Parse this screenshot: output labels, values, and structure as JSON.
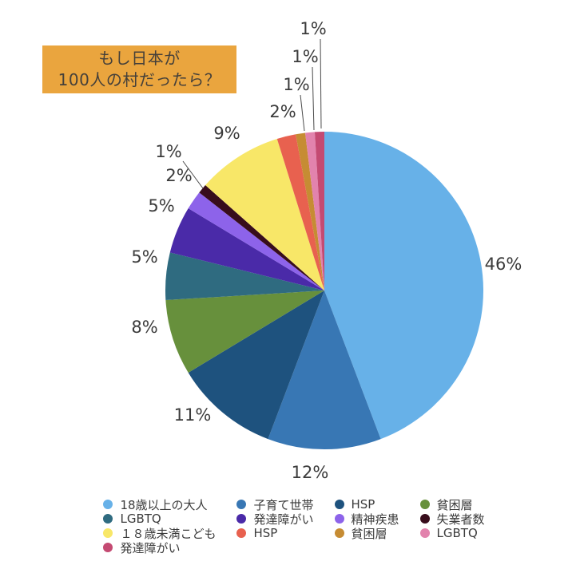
{
  "title": {
    "line1": "もし日本が",
    "line2": "100人の村だったら？"
  },
  "colors": {
    "title_bg": "#eaa53e",
    "title_text": "#45403a",
    "label_text": "#3b3b3b",
    "page_bg": "#ffffff"
  },
  "chart_data": {
    "type": "pie",
    "title": "もし日本が100人の村だったら？",
    "value_unit": "percent",
    "start_angle_deg": 0,
    "direction": "clockwise",
    "grid": false,
    "legend_position": "bottom",
    "legend_columns": 4,
    "slices": [
      {
        "label": "18歳以上の大人",
        "value": 46,
        "display": "46%",
        "color": "#67b1e8"
      },
      {
        "label": "子育て世帯",
        "value": 12,
        "display": "12%",
        "color": "#3877b4"
      },
      {
        "label": "HSP",
        "value": 11,
        "display": "11%",
        "color": "#1e527e"
      },
      {
        "label": "貧困層",
        "value": 8,
        "display": "8%",
        "color": "#67903c"
      },
      {
        "label": "LGBTQ",
        "value": 5,
        "display": "5%",
        "color": "#2f6b80"
      },
      {
        "label": "発達障がい",
        "value": 5,
        "display": "5%",
        "color": "#4a2aa8"
      },
      {
        "label": "精神疾患",
        "value": 2,
        "display": "2%",
        "color": "#8d63ea"
      },
      {
        "label": "失業者数",
        "value": 1,
        "display": "1%",
        "color": "#380d1c"
      },
      {
        "label": "１８歳未満こども",
        "value": 9,
        "display": "9%",
        "color": "#f8e768"
      },
      {
        "label": "HSP",
        "value": 2,
        "display": "2%",
        "color": "#e8614f"
      },
      {
        "label": "貧困層",
        "value": 1,
        "display": "1%",
        "color": "#c68c33"
      },
      {
        "label": "LGBTQ",
        "value": 1,
        "display": "1%",
        "color": "#e283ad"
      },
      {
        "label": "発達障がい",
        "value": 1,
        "display": "1%",
        "color": "#c44a72"
      }
    ]
  }
}
